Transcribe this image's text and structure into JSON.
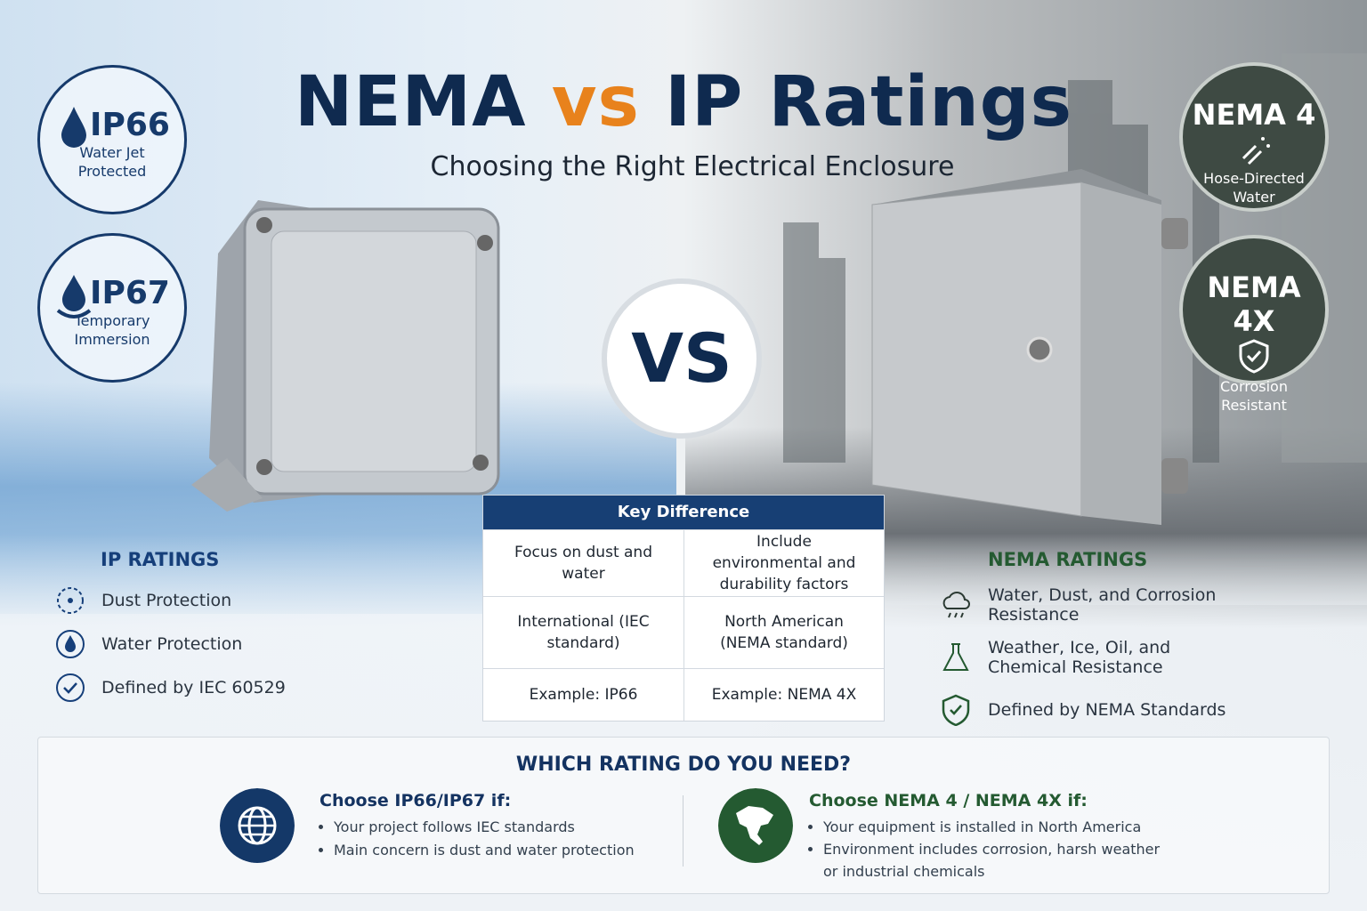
{
  "header": {
    "title": [
      "NEMA",
      "vs",
      "IP Ratings"
    ],
    "subtitle": "Choosing the Right Electrical Enclosure"
  },
  "ip_badges": [
    {
      "label": "IP66",
      "text": "Water Jet Protected"
    },
    {
      "label": "IP67",
      "text": "Temporary Immersion"
    }
  ],
  "nema_badges": [
    {
      "label": "NEMA 4",
      "text": "Hose-Directed Water"
    },
    {
      "label": "NEMA 4X",
      "text": "Corrosion Resistant"
    }
  ],
  "vs": "VS",
  "ip_section": {
    "title": "IP RATINGS",
    "items": [
      "Dust Protection",
      "Water Protection",
      "Defined by IEC 60529"
    ]
  },
  "nema_section": {
    "title": "NEMA RATINGS",
    "items": [
      "Water, Dust, and Corrosion Resistance",
      "Weather, Ice, Oil, and Chemical Resistance",
      "Defined by NEMA Standards"
    ]
  },
  "key_difference": {
    "title": "Key Difference",
    "rows": [
      [
        "Focus on dust and water",
        "Include environmental and durability factors"
      ],
      [
        "International (IEC standard)",
        "North American (NEMA standard)"
      ],
      [
        "Example: IP66",
        "Example: NEMA 4X"
      ]
    ]
  },
  "which": {
    "title": "WHICH RATING DO YOU NEED?",
    "left": {
      "heading": "Choose IP66/IP67 if:",
      "bullets": [
        "Your project follows IEC standards",
        "Main concern is dust and water protection"
      ]
    },
    "right": {
      "heading": "Choose NEMA 4 / NEMA 4X if:",
      "bullets": [
        "Your equipment is installed in North America",
        "Environment includes corrosion, harsh weather or industrial chemicals"
      ]
    }
  }
}
